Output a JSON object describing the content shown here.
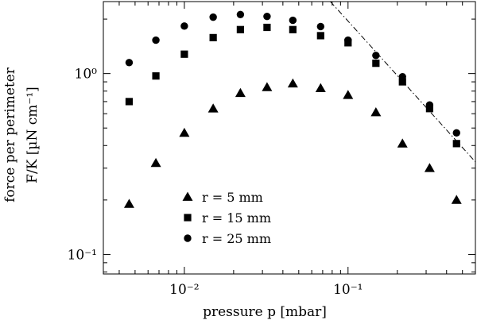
{
  "chart_data": {
    "type": "scatter",
    "xlabel": "pressure p [mbar]",
    "ylabel_line1": "force per perimeter",
    "ylabel_line2": "F/K [µN cm⁻¹]",
    "x_scale": "log",
    "y_scale": "log",
    "xlim": [
      0.0032,
      0.6
    ],
    "ylim": [
      0.078,
      2.5
    ],
    "x_ticks": [
      {
        "value": 0.01,
        "label": "10⁻²"
      },
      {
        "value": 0.1,
        "label": "10⁻¹"
      }
    ],
    "y_ticks": [
      {
        "value": 1.0,
        "label": "10⁰"
      },
      {
        "value": 0.1,
        "label": "10⁻¹"
      }
    ],
    "grid": false,
    "legend_position": "bottom-left",
    "series": [
      {
        "name": "r = 5 mm",
        "marker": "triangle",
        "points": [
          [
            0.0046,
            0.19
          ],
          [
            0.0067,
            0.32
          ],
          [
            0.01,
            0.47
          ],
          [
            0.015,
            0.64
          ],
          [
            0.022,
            0.78
          ],
          [
            0.032,
            0.84
          ],
          [
            0.046,
            0.88
          ],
          [
            0.068,
            0.83
          ],
          [
            0.1,
            0.76
          ],
          [
            0.148,
            0.61
          ],
          [
            0.215,
            0.41
          ],
          [
            0.315,
            0.3
          ],
          [
            0.46,
            0.2
          ]
        ]
      },
      {
        "name": "r = 15 mm",
        "marker": "square",
        "points": [
          [
            0.0046,
            0.7
          ],
          [
            0.0067,
            0.97
          ],
          [
            0.01,
            1.28
          ],
          [
            0.015,
            1.58
          ],
          [
            0.022,
            1.75
          ],
          [
            0.032,
            1.8
          ],
          [
            0.046,
            1.75
          ],
          [
            0.068,
            1.62
          ],
          [
            0.1,
            1.48
          ],
          [
            0.148,
            1.14
          ],
          [
            0.215,
            0.9
          ],
          [
            0.315,
            0.64
          ],
          [
            0.46,
            0.41
          ]
        ]
      },
      {
        "name": "r = 25 mm",
        "marker": "circle",
        "points": [
          [
            0.0046,
            1.15
          ],
          [
            0.0067,
            1.53
          ],
          [
            0.01,
            1.83
          ],
          [
            0.015,
            2.05
          ],
          [
            0.022,
            2.12
          ],
          [
            0.032,
            2.07
          ],
          [
            0.046,
            1.97
          ],
          [
            0.068,
            1.82
          ],
          [
            0.1,
            1.53
          ],
          [
            0.148,
            1.26
          ],
          [
            0.215,
            0.96
          ],
          [
            0.315,
            0.67
          ],
          [
            0.46,
            0.47
          ]
        ]
      }
    ],
    "reference_line": {
      "style": "dash-dot",
      "points": [
        [
          0.078,
          2.5
        ],
        [
          0.6,
          0.325
        ]
      ]
    }
  }
}
